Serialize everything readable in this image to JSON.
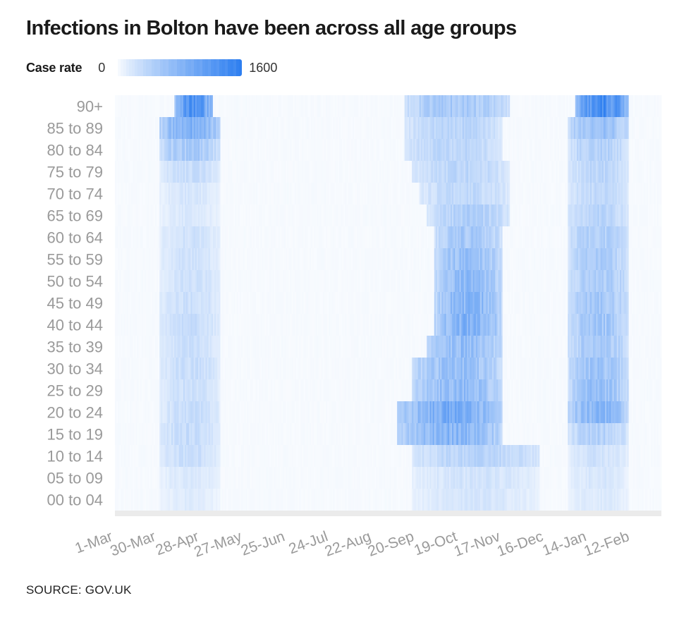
{
  "title": "Infections in Bolton have been across all age groups",
  "legend": {
    "label": "Case rate",
    "min_label": "0",
    "max_label": "1600",
    "min_color": "#ffffff",
    "max_color": "#2e7ff0"
  },
  "source": "SOURCE: GOV.UK",
  "chart_data": {
    "type": "heatmap",
    "title": "Infections in Bolton have been across all age groups",
    "xlabel": "",
    "ylabel": "",
    "value_label": "Case rate",
    "value_range": [
      0,
      1600
    ],
    "x_ticks": [
      "1-Mar",
      "30-Mar",
      "28-Apr",
      "27-May",
      "25-Jun",
      "24-Jul",
      "22-Aug",
      "20-Sep",
      "19-Oct",
      "17-Nov",
      "16-Dec",
      "14-Jan",
      "12-Feb"
    ],
    "x_tick_interval_days": 29,
    "days": 368,
    "y_categories": [
      "90+",
      "85 to 89",
      "80 to 84",
      "75 to 79",
      "70 to 74",
      "65 to 69",
      "60 to 64",
      "55 to 59",
      "50 to 54",
      "45 to 49",
      "40 to 44",
      "35 to 39",
      "30 to 34",
      "25 to 29",
      "20 to 24",
      "15 to 19",
      "10 to 14",
      "05 to 09",
      "00 to 04"
    ],
    "rows": [
      {
        "group": "90+",
        "peaks": [
          {
            "from_day": 40,
            "to_day": 65,
            "rate": 1200
          },
          {
            "from_day": 195,
            "to_day": 265,
            "rate": 550
          },
          {
            "from_day": 310,
            "to_day": 345,
            "rate": 1300
          }
        ]
      },
      {
        "group": "85 to 89",
        "peaks": [
          {
            "from_day": 30,
            "to_day": 70,
            "rate": 850
          },
          {
            "from_day": 195,
            "to_day": 260,
            "rate": 400
          },
          {
            "from_day": 305,
            "to_day": 345,
            "rate": 650
          }
        ]
      },
      {
        "group": "80 to 84",
        "peaks": [
          {
            "from_day": 30,
            "to_day": 70,
            "rate": 550
          },
          {
            "from_day": 195,
            "to_day": 260,
            "rate": 400
          },
          {
            "from_day": 305,
            "to_day": 345,
            "rate": 450
          }
        ]
      },
      {
        "group": "75 to 79",
        "peaks": [
          {
            "from_day": 30,
            "to_day": 70,
            "rate": 300
          },
          {
            "from_day": 200,
            "to_day": 265,
            "rate": 380
          },
          {
            "from_day": 305,
            "to_day": 345,
            "rate": 380
          }
        ]
      },
      {
        "group": "70 to 74",
        "peaks": [
          {
            "from_day": 30,
            "to_day": 70,
            "rate": 200
          },
          {
            "from_day": 205,
            "to_day": 265,
            "rate": 350
          },
          {
            "from_day": 305,
            "to_day": 345,
            "rate": 340
          }
        ]
      },
      {
        "group": "65 to 69",
        "peaks": [
          {
            "from_day": 30,
            "to_day": 70,
            "rate": 180
          },
          {
            "from_day": 210,
            "to_day": 265,
            "rate": 450
          },
          {
            "from_day": 305,
            "to_day": 345,
            "rate": 400
          }
        ]
      },
      {
        "group": "60 to 64",
        "peaks": [
          {
            "from_day": 30,
            "to_day": 70,
            "rate": 250
          },
          {
            "from_day": 215,
            "to_day": 260,
            "rate": 550
          },
          {
            "from_day": 305,
            "to_day": 345,
            "rate": 480
          }
        ]
      },
      {
        "group": "55 to 59",
        "peaks": [
          {
            "from_day": 30,
            "to_day": 70,
            "rate": 250
          },
          {
            "from_day": 215,
            "to_day": 260,
            "rate": 650
          },
          {
            "from_day": 305,
            "to_day": 345,
            "rate": 500
          }
        ]
      },
      {
        "group": "50 to 54",
        "peaks": [
          {
            "from_day": 30,
            "to_day": 70,
            "rate": 260
          },
          {
            "from_day": 215,
            "to_day": 260,
            "rate": 700
          },
          {
            "from_day": 305,
            "to_day": 345,
            "rate": 520
          }
        ]
      },
      {
        "group": "45 to 49",
        "peaks": [
          {
            "from_day": 30,
            "to_day": 70,
            "rate": 280
          },
          {
            "from_day": 215,
            "to_day": 260,
            "rate": 780
          },
          {
            "from_day": 305,
            "to_day": 345,
            "rate": 560
          }
        ]
      },
      {
        "group": "40 to 44",
        "peaks": [
          {
            "from_day": 30,
            "to_day": 70,
            "rate": 300
          },
          {
            "from_day": 215,
            "to_day": 260,
            "rate": 820
          },
          {
            "from_day": 305,
            "to_day": 345,
            "rate": 580
          }
        ]
      },
      {
        "group": "35 to 39",
        "peaks": [
          {
            "from_day": 30,
            "to_day": 70,
            "rate": 280
          },
          {
            "from_day": 210,
            "to_day": 260,
            "rate": 700
          },
          {
            "from_day": 305,
            "to_day": 345,
            "rate": 560
          }
        ]
      },
      {
        "group": "30 to 34",
        "peaks": [
          {
            "from_day": 30,
            "to_day": 70,
            "rate": 300
          },
          {
            "from_day": 200,
            "to_day": 260,
            "rate": 650
          },
          {
            "from_day": 305,
            "to_day": 345,
            "rate": 600
          }
        ]
      },
      {
        "group": "25 to 29",
        "peaks": [
          {
            "from_day": 30,
            "to_day": 70,
            "rate": 280
          },
          {
            "from_day": 200,
            "to_day": 260,
            "rate": 700
          },
          {
            "from_day": 305,
            "to_day": 345,
            "rate": 650
          }
        ]
      },
      {
        "group": "20 to 24",
        "peaks": [
          {
            "from_day": 30,
            "to_day": 70,
            "rate": 300
          },
          {
            "from_day": 190,
            "to_day": 260,
            "rate": 900
          },
          {
            "from_day": 305,
            "to_day": 345,
            "rate": 800
          }
        ]
      },
      {
        "group": "15 to 19",
        "peaks": [
          {
            "from_day": 30,
            "to_day": 70,
            "rate": 320
          },
          {
            "from_day": 190,
            "to_day": 260,
            "rate": 800
          },
          {
            "from_day": 305,
            "to_day": 345,
            "rate": 450
          }
        ]
      },
      {
        "group": "10 to 14",
        "peaks": [
          {
            "from_day": 30,
            "to_day": 70,
            "rate": 280
          },
          {
            "from_day": 200,
            "to_day": 285,
            "rate": 400
          },
          {
            "from_day": 305,
            "to_day": 345,
            "rate": 250
          }
        ]
      },
      {
        "group": "05 to 09",
        "peaks": [
          {
            "from_day": 30,
            "to_day": 70,
            "rate": 180
          },
          {
            "from_day": 200,
            "to_day": 285,
            "rate": 230
          },
          {
            "from_day": 305,
            "to_day": 345,
            "rate": 200
          }
        ]
      },
      {
        "group": "00 to 04",
        "peaks": [
          {
            "from_day": 30,
            "to_day": 70,
            "rate": 150
          },
          {
            "from_day": 200,
            "to_day": 285,
            "rate": 200
          },
          {
            "from_day": 305,
            "to_day": 345,
            "rate": 170
          }
        ]
      }
    ]
  }
}
